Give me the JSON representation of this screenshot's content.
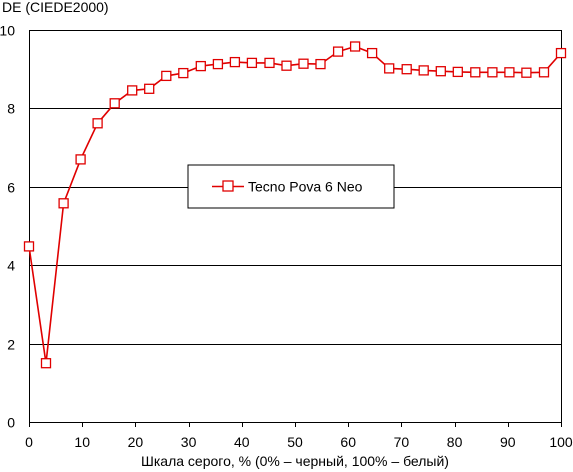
{
  "chart_data": {
    "type": "line",
    "ylabel": "DE (CIEDE2000)",
    "xlabel": "Шкала серого, % (0% – черный, 100% – белый)",
    "xlim": [
      0,
      100
    ],
    "ylim": [
      0,
      10
    ],
    "x_ticks": [
      "0",
      "10",
      "20",
      "30",
      "40",
      "50",
      "60",
      "70",
      "80",
      "90",
      "100"
    ],
    "y_ticks": [
      "0",
      "2",
      "4",
      "6",
      "8",
      "10"
    ],
    "grid": "horizontal",
    "legend_position": "center",
    "colors": {
      "series": "#e00000",
      "grid": "#000000",
      "marker_fill": "#ffffff"
    },
    "series": [
      {
        "name": "Tecno Pova 6 Neo",
        "marker": "square-open",
        "x": [
          0,
          3.2,
          6.5,
          9.7,
          12.9,
          16.1,
          19.4,
          22.6,
          25.8,
          29.0,
          32.3,
          35.5,
          38.7,
          41.9,
          45.2,
          48.4,
          51.6,
          54.8,
          58.1,
          61.3,
          64.5,
          67.7,
          71.0,
          74.2,
          77.4,
          80.6,
          83.9,
          87.1,
          90.3,
          93.5,
          96.8,
          100
        ],
        "y": [
          4.48,
          1.5,
          5.58,
          6.7,
          7.62,
          8.13,
          8.46,
          8.5,
          8.83,
          8.9,
          9.08,
          9.13,
          9.18,
          9.16,
          9.16,
          9.09,
          9.14,
          9.13,
          9.45,
          9.58,
          9.41,
          9.02,
          9.0,
          8.97,
          8.95,
          8.93,
          8.92,
          8.92,
          8.92,
          8.91,
          8.92,
          9.41
        ]
      }
    ]
  }
}
